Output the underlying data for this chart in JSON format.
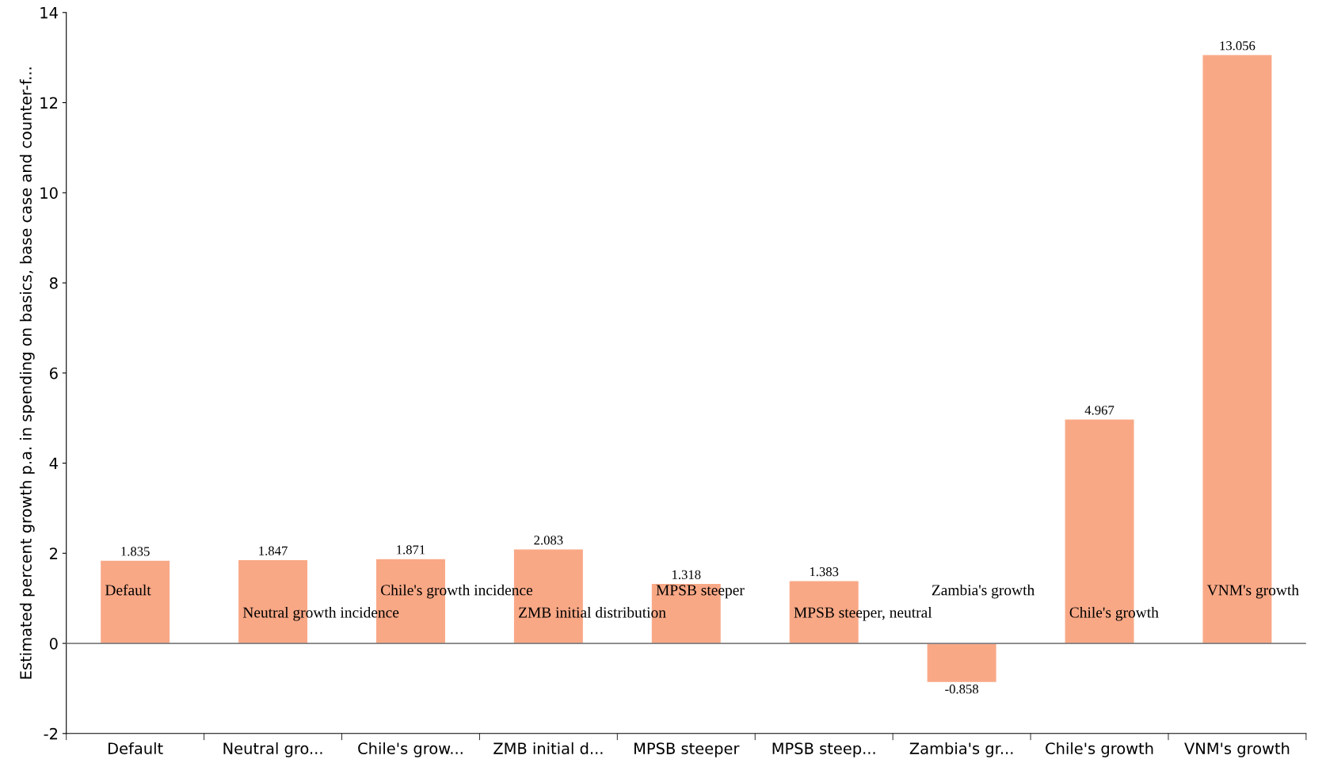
{
  "chart_data": {
    "type": "bar",
    "ylabel": "Estimated percent growth p.a. in spending on basics, base case and counter-f...",
    "categories": [
      "Default",
      "Neutral gro...",
      "Chile's grow...",
      "ZMB initial d...",
      "MPSB steeper",
      "MPSB steep...",
      "Zambia's gr...",
      "Chile's growth",
      "VNM's growth"
    ],
    "values": [
      1.835,
      1.847,
      1.871,
      2.083,
      1.318,
      1.383,
      -0.858,
      4.967,
      13.056
    ],
    "color": "#f9a886",
    "data_labels": true,
    "ylim": [
      -2,
      14
    ],
    "yticks": [
      -2,
      0,
      2,
      4,
      6,
      8,
      10,
      12,
      14
    ],
    "grid": false,
    "legend": false,
    "ref_lines": [
      {
        "axis": "y",
        "value": 0,
        "color": "#808080"
      }
    ],
    "annotations": [
      "Default",
      "Neutral growth incidence",
      "Chile's growth incidence",
      "ZMB initial distribution",
      "MPSB steeper",
      "MPSB steeper, neutral",
      "Zambia's growth",
      "Chile's growth",
      "VNM's growth"
    ]
  }
}
